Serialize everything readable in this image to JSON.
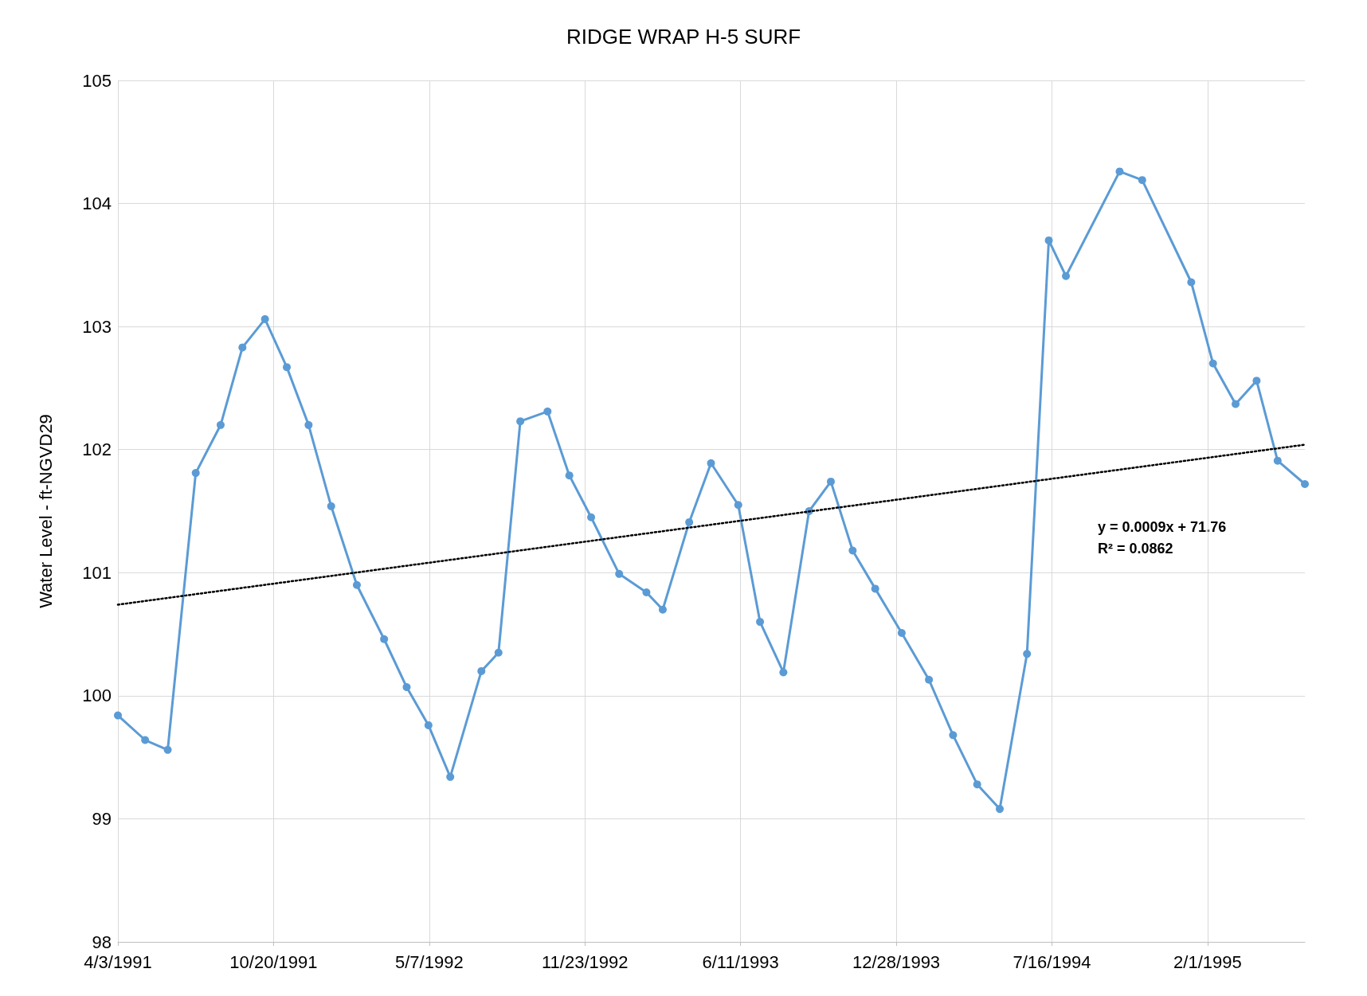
{
  "chart_data": {
    "type": "line",
    "title": "RIDGE WRAP H-5 SURF",
    "ylabel": "Water Level - ft-NGVD29",
    "x": [
      "1991-04-03",
      "1991-05-08",
      "1991-06-06",
      "1991-07-12",
      "1991-08-13",
      "1991-09-10",
      "1991-10-09",
      "1991-11-06",
      "1991-12-04",
      "1992-01-02",
      "1992-02-04",
      "1992-03-10",
      "1992-04-08",
      "1992-05-06",
      "1992-06-03",
      "1992-07-13",
      "1992-08-04",
      "1992-09-01",
      "1992-10-06",
      "1992-11-03",
      "1992-12-01",
      "1993-01-06",
      "1993-02-10",
      "1993-03-03",
      "1993-04-06",
      "1993-05-04",
      "1993-06-08",
      "1993-07-06",
      "1993-08-05",
      "1993-09-07",
      "1993-10-05",
      "1993-11-02",
      "1993-12-01",
      "1994-01-04",
      "1994-02-08",
      "1994-03-11",
      "1994-04-11",
      "1994-05-10",
      "1994-06-14",
      "1994-07-12",
      "1994-08-03",
      "1994-10-11",
      "1994-11-09",
      "1995-01-11",
      "1995-02-08",
      "1995-03-09",
      "1995-04-05",
      "1995-05-02",
      "1995-06-06"
    ],
    "series": [
      {
        "color": "#5b9bd5",
        "marker": "circle",
        "line_style": "solid",
        "values": [
          99.84,
          99.64,
          99.56,
          101.81,
          102.2,
          102.83,
          103.06,
          102.67,
          102.2,
          101.54,
          100.9,
          100.46,
          100.07,
          99.76,
          99.34,
          100.2,
          100.35,
          102.23,
          102.31,
          101.79,
          101.45,
          100.99,
          100.84,
          100.7,
          101.41,
          101.89,
          101.55,
          100.6,
          100.19,
          101.5,
          101.74,
          101.18,
          100.87,
          100.51,
          100.13,
          99.68,
          99.28,
          99.08,
          100.34,
          103.7,
          103.41,
          104.26,
          104.19,
          103.36,
          102.7,
          102.37,
          102.56,
          101.91,
          101.72
        ]
      },
      {
        "color": "#000000",
        "marker": "none",
        "line_style": "dotted",
        "x": [
          "1991-04-03",
          "1995-06-06"
        ],
        "values": [
          100.74,
          102.04
        ]
      }
    ],
    "xlim": [
      "1991-04-03",
      "1995-06-06"
    ],
    "xticks": [
      {
        "value": "1991-04-03",
        "label": "4/3/1991"
      },
      {
        "value": "1991-10-20",
        "label": "10/20/1991"
      },
      {
        "value": "1992-05-07",
        "label": "5/7/1992"
      },
      {
        "value": "1992-11-23",
        "label": "11/23/1992"
      },
      {
        "value": "1993-06-11",
        "label": "6/11/1993"
      },
      {
        "value": "1993-12-28",
        "label": "12/28/1993"
      },
      {
        "value": "1994-07-16",
        "label": "7/16/1994"
      },
      {
        "value": "1995-02-01",
        "label": "2/1/1995"
      }
    ],
    "ylim": [
      98,
      105
    ],
    "yticks": [
      98,
      99,
      100,
      101,
      102,
      103,
      104,
      105
    ],
    "grid": true,
    "annotations": [
      "y = 0.0009x + 71.76",
      "R² = 0.0862"
    ]
  }
}
